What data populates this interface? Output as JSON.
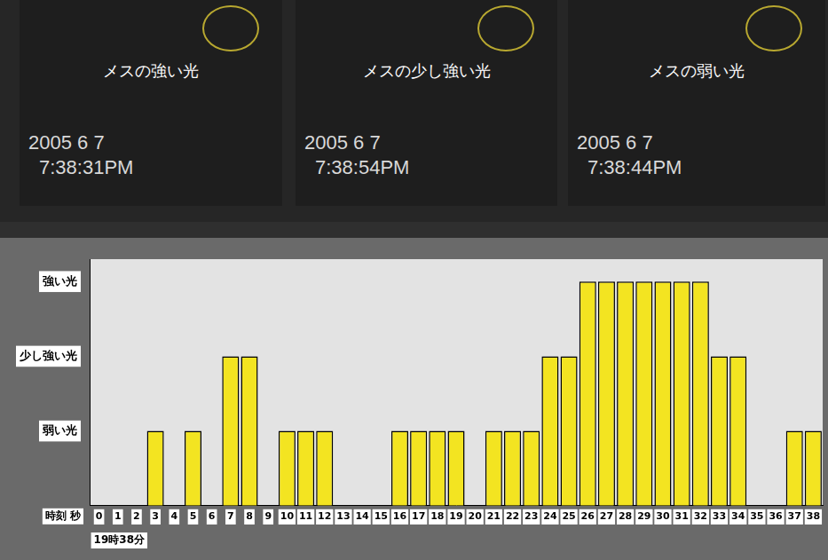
{
  "panels": [
    {
      "label": "メスの強い光",
      "date": "2005 6 7",
      "time": "7:38:31PM"
    },
    {
      "label": "メスの少し強い光",
      "date": "2005 6 7",
      "time": "7:38:54PM"
    },
    {
      "label": "メスの弱い光",
      "date": "2005 6 7",
      "time": "7:38:44PM"
    }
  ],
  "chart_data": {
    "type": "bar",
    "categories": [
      0,
      1,
      2,
      3,
      4,
      5,
      6,
      7,
      8,
      9,
      10,
      11,
      12,
      13,
      14,
      15,
      16,
      17,
      18,
      19,
      20,
      21,
      22,
      23,
      24,
      25,
      26,
      27,
      28,
      29,
      30,
      31,
      32,
      33,
      34,
      35,
      36,
      37,
      38
    ],
    "values": [
      0,
      0,
      0,
      1,
      0,
      1,
      0,
      2,
      2,
      0,
      1,
      1,
      1,
      0,
      0,
      0,
      1,
      1,
      1,
      1,
      0,
      1,
      1,
      1,
      2,
      2,
      3,
      3,
      3,
      3,
      3,
      3,
      3,
      2,
      2,
      0,
      0,
      1,
      1
    ],
    "color": "#f3e421",
    "ylim": [
      0,
      3.3
    ],
    "yticks": [
      {
        "value": 1,
        "label": "弱い光"
      },
      {
        "value": 2,
        "label": "少し強い光"
      },
      {
        "value": 3,
        "label": "強い光"
      }
    ],
    "xlabel": "時刻 秒",
    "annotations": [
      "19時38分"
    ],
    "grid": false
  }
}
